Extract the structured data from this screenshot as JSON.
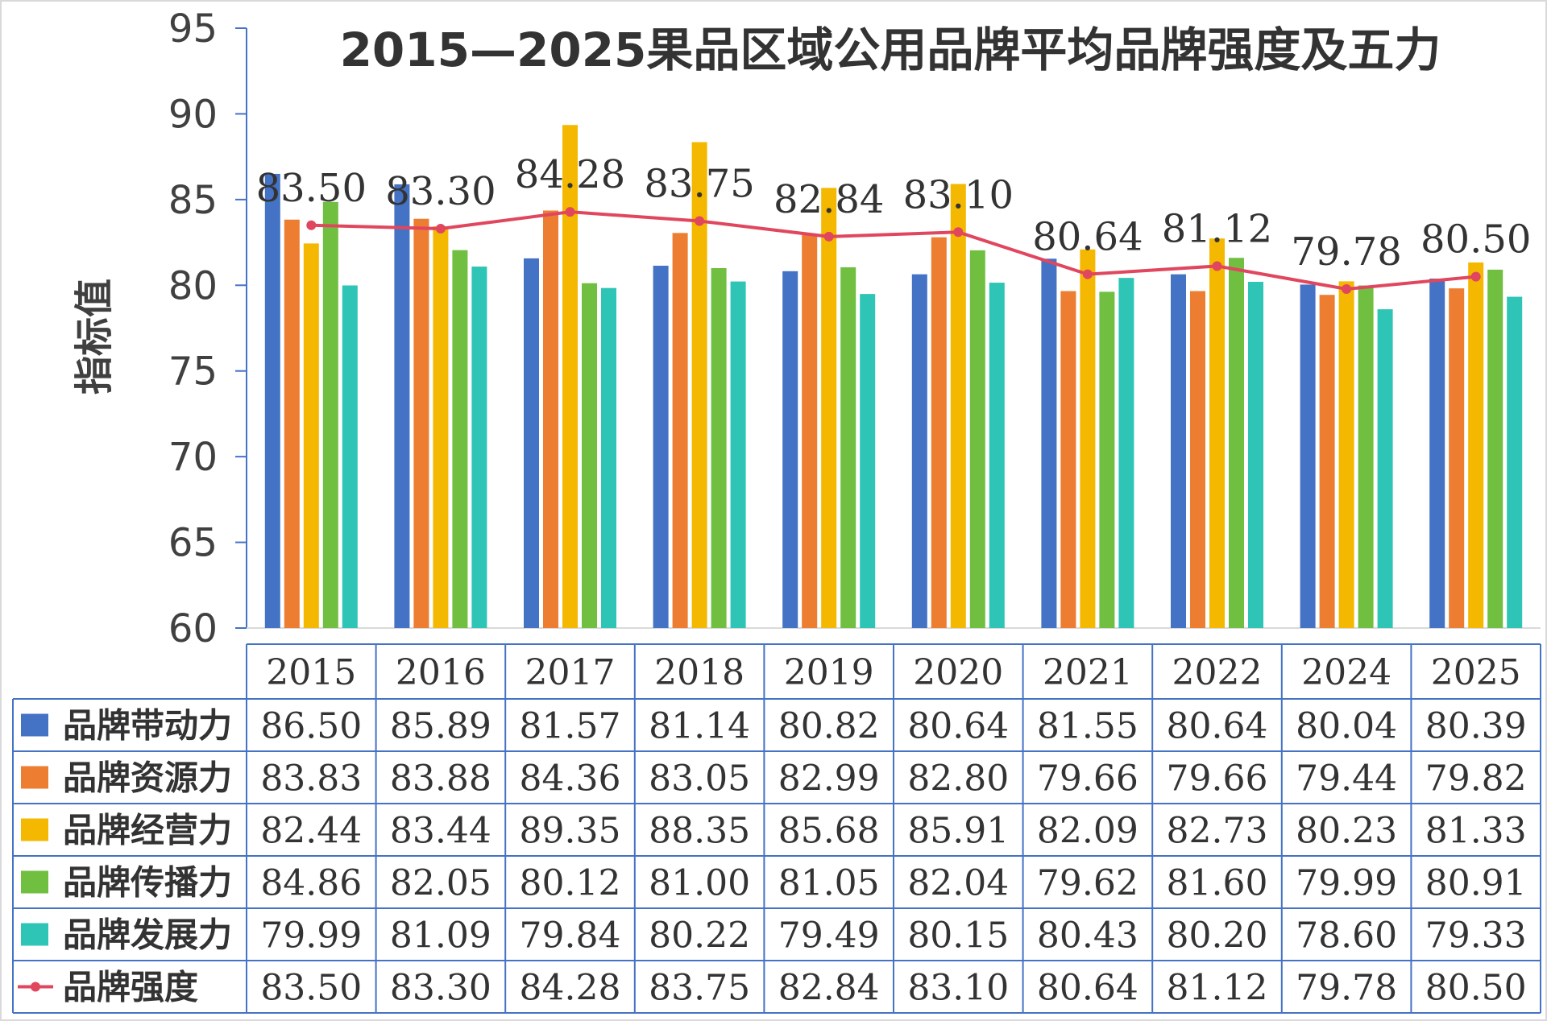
{
  "chart_data": {
    "type": "bar",
    "title": "2015—2025果品区域公用品牌平均品牌强度及五力",
    "ylabel": "指标值",
    "ylim": [
      60,
      95
    ],
    "yticks": [
      "60",
      "65",
      "70",
      "75",
      "80",
      "85",
      "90",
      "95"
    ],
    "categories": [
      "2015",
      "2016",
      "2017",
      "2018",
      "2019",
      "2020",
      "2021",
      "2022",
      "2024",
      "2025"
    ],
    "series": [
      {
        "name": "品牌带动力",
        "type": "bar",
        "color": "#4472C4",
        "values": [
          86.5,
          85.89,
          81.57,
          81.14,
          80.82,
          80.64,
          81.55,
          80.64,
          80.04,
          80.39
        ],
        "labels": [
          "86.50",
          "85.89",
          "81.57",
          "81.14",
          "80.82",
          "80.64",
          "81.55",
          "80.64",
          "80.04",
          "80.39"
        ]
      },
      {
        "name": "品牌资源力",
        "type": "bar",
        "color": "#ED7D31",
        "values": [
          83.83,
          83.88,
          84.36,
          83.05,
          82.99,
          82.8,
          79.66,
          79.66,
          79.44,
          79.82
        ],
        "labels": [
          "83.83",
          "83.88",
          "84.36",
          "83.05",
          "82.99",
          "82.80",
          "79.66",
          "79.66",
          "79.44",
          "79.82"
        ]
      },
      {
        "name": "品牌经营力",
        "type": "bar",
        "color": "#F4B800",
        "values": [
          82.44,
          83.44,
          89.35,
          88.35,
          85.68,
          85.91,
          82.09,
          82.73,
          80.23,
          81.33
        ],
        "labels": [
          "82.44",
          "83.44",
          "89.35",
          "88.35",
          "85.68",
          "85.91",
          "82.09",
          "82.73",
          "80.23",
          "81.33"
        ]
      },
      {
        "name": "品牌传播力",
        "type": "bar",
        "color": "#70BF41",
        "values": [
          84.86,
          82.05,
          80.12,
          81.0,
          81.05,
          82.04,
          79.62,
          81.6,
          79.99,
          80.91
        ],
        "labels": [
          "84.86",
          "82.05",
          "80.12",
          "81.00",
          "81.05",
          "82.04",
          "79.62",
          "81.60",
          "79.99",
          "80.91"
        ]
      },
      {
        "name": "品牌发展力",
        "type": "bar",
        "color": "#2EC4B6",
        "values": [
          79.99,
          81.09,
          79.84,
          80.22,
          79.49,
          80.15,
          80.43,
          80.2,
          78.6,
          79.33
        ],
        "labels": [
          "79.99",
          "81.09",
          "79.84",
          "80.22",
          "79.49",
          "80.15",
          "80.43",
          "80.20",
          "78.60",
          "79.33"
        ]
      },
      {
        "name": "品牌强度",
        "type": "line",
        "color": "#E0475E",
        "values": [
          83.5,
          83.3,
          84.28,
          83.75,
          82.84,
          83.1,
          80.64,
          81.12,
          79.78,
          80.5
        ],
        "labels": [
          "83.50",
          "83.30",
          "84.28",
          "83.75",
          "82.84",
          "83.10",
          "80.64",
          "81.12",
          "79.78",
          "80.50"
        ]
      }
    ],
    "data_labels_on": "品牌强度",
    "legend": "data-table",
    "grid": false
  }
}
